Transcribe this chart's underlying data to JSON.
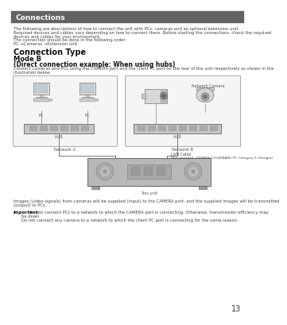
{
  "title": "Connections",
  "title_bg_color": "#636363",
  "title_text_color": "#ffffff",
  "page_bg_color": "#ffffff",
  "page_number": "13",
  "body_text_color": "#444444",
  "intro_lines": [
    "The following are descriptions of how to connect the unit with PCs, cameras and an optional extension unit.",
    "Required devices and cables vary depending on how to connect them. Before starting the connections, check the required",
    "devices and cables for your environment.",
    "The connection should be done in the following order:",
    "PC →Cameras →Extension unit"
  ],
  "section_title": "Connection Type",
  "mode_title": "Mode B",
  "mode_subtitle": "(Direct connection example: When using hubs)",
  "connect_line1": "Connect cameras and PCs using the CAMERA port and the client PC port on the rear of the unit respectively as shown in the",
  "connect_line2": "illustration below.",
  "footer_lines": [
    "Images (video signals) from cameras will be supplied (input) to the CAMERA port, and the supplied images will be transmitted",
    "(output) to PCs."
  ],
  "important_label": "Important:",
  "important_lines": [
    "Do not connect PCs to a network to which the CAMERA port is connecting. Otherwise, transmission efficiency may",
    "be down.",
    "Do not connect any camera to a network to which the client PC port is connecting for the same reason."
  ],
  "diagram_box_color": "#f5f5f5",
  "diagram_box_border": "#999999",
  "network_a_label": "Network A",
  "network_b_label": "Network B",
  "network_camera_label": "Network Camera",
  "lan_cable_label": "LAN Cable",
  "lan_cable_sub": "(Not provided: 100BASE-T/1000BASE-TX, Category 5, Straight)",
  "this_unit_label": "This unit",
  "hub_label": "HUB",
  "pc_label": "PC"
}
